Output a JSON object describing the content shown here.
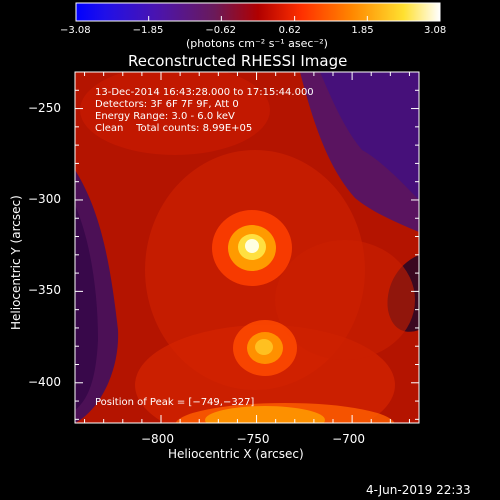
{
  "colorbar": {
    "ticks": [
      "−3.08",
      "−1.85",
      "−0.62",
      "0.62",
      "1.85",
      "3.08"
    ],
    "units": "(photons cm⁻² s⁻¹ asec⁻²)",
    "min": -3.08,
    "max": 3.08
  },
  "chart_data": {
    "type": "heatmap",
    "title": "Reconstructed RHESSI Image",
    "xlabel": "Heliocentric X (arcsec)",
    "ylabel": "Heliocentric Y (arcsec)",
    "xlim": [
      -845,
      -665
    ],
    "ylim": [
      -422,
      -230
    ],
    "x_ticks": [
      -800,
      -750,
      -700
    ],
    "y_ticks": [
      -250,
      -300,
      -350,
      -400
    ],
    "x_tick_labels": [
      "−800",
      "−750",
      "−700"
    ],
    "y_tick_labels": [
      "−250",
      "−300",
      "−350",
      "−400"
    ],
    "peak": {
      "x": -749,
      "y": -327
    },
    "sources": [
      {
        "x": -749,
        "y": -327,
        "level": 1.0
      },
      {
        "x": -747,
        "y": -377,
        "level": 0.55
      }
    ],
    "colormap": "Rainbow + white"
  },
  "info_lines": [
    "13-Dec-2014 16:43:28.000 to 17:15:44.000",
    "Detectors: 3F 6F 7F 9F, Att 0",
    "Energy Range: 3.0 - 6.0 keV",
    "Clean    Total counts: 8.99E+05"
  ],
  "peak_label": "Position of Peak = [−749,−327]",
  "footer_date": "4-Jun-2019 22:33"
}
